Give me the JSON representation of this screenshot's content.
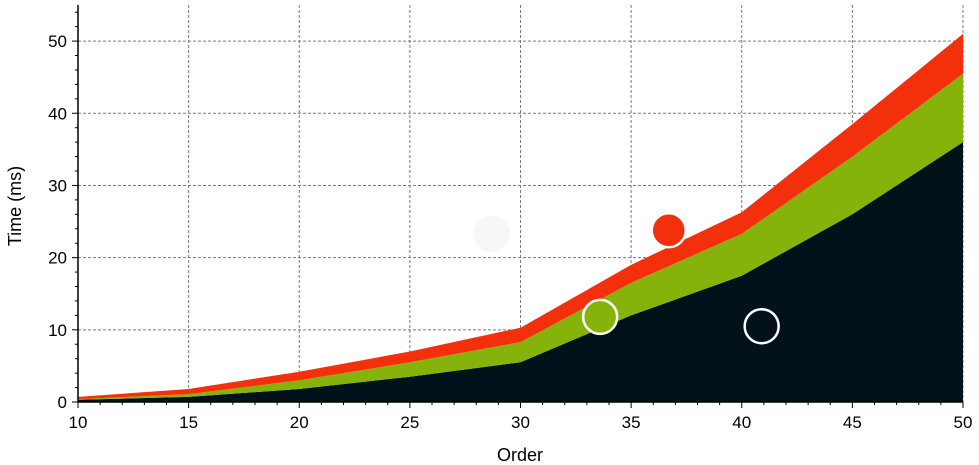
{
  "chart_data": {
    "type": "area",
    "stacked": true,
    "title": "",
    "xlabel": "Order",
    "ylabel": "Time (ms)",
    "xlim": [
      10,
      50
    ],
    "ylim": [
      0,
      55
    ],
    "x_ticks": [
      10,
      15,
      20,
      25,
      30,
      35,
      40,
      45,
      50
    ],
    "y_ticks": [
      0,
      10,
      20,
      30,
      40,
      50
    ],
    "grid": true,
    "x": [
      10,
      15,
      20,
      25,
      30,
      35,
      40,
      45,
      50
    ],
    "series": [
      {
        "values": [
          0.3,
          0.7,
          1.8,
          3.5,
          5.5,
          12.0,
          17.5,
          26.0,
          36.0
        ],
        "color": "#02111a"
      },
      {
        "values": [
          0.1,
          0.4,
          1.2,
          2.0,
          2.8,
          4.5,
          5.8,
          8.0,
          9.5
        ],
        "color": "#86b30b"
      },
      {
        "values": [
          0.3,
          0.7,
          1.2,
          1.5,
          2.0,
          2.5,
          3.0,
          4.5,
          5.5
        ],
        "color": "#f4300c"
      }
    ],
    "markers": [
      {
        "x": 28.7,
        "y": 23.3,
        "fill": "#f5f8f6",
        "stroke": "#f5f8f6"
      },
      {
        "x": 36.7,
        "y": 23.8,
        "fill": "#f4300c",
        "stroke": "#ffffff"
      },
      {
        "x": 33.6,
        "y": 11.8,
        "fill": "#86b30b",
        "stroke": "#ffffff"
      },
      {
        "x": 40.9,
        "y": 10.5,
        "fill": "#02111a",
        "stroke": "#ffffff"
      }
    ]
  }
}
